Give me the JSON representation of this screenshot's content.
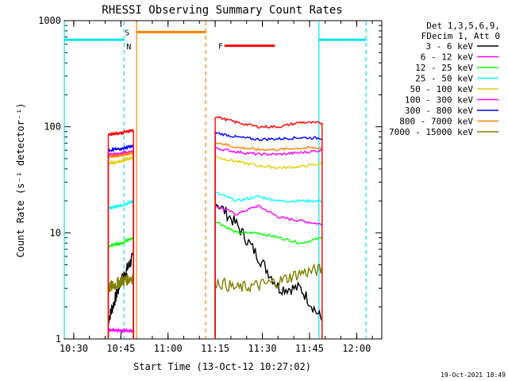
{
  "chart_data": {
    "type": "line",
    "title": "RHESSI Observing Summary Count Rates",
    "xlabel": "Start Time (13-Oct-12 10:27:02)",
    "ylabel": "Count Rate (s⁻¹ detector⁻¹)",
    "y_scale": "log",
    "ylim": [
      1,
      1000
    ],
    "xlim": [
      "10:27",
      "12:08"
    ],
    "x_ticks": [
      "10:30",
      "10:45",
      "11:00",
      "11:15",
      "11:30",
      "11:45",
      "12:00"
    ],
    "y_ticks": [
      "1",
      "10",
      "100",
      "1000"
    ],
    "legend_header": [
      "Det 1,3,5,6,9,",
      "FDecim 1, Att 0"
    ],
    "legend_position": "right",
    "footer_timestamp": "19-Oct-2021 18:49",
    "flags": [
      {
        "label": "N",
        "color": "#00e5ee",
        "ranges": [
          [
            "10:27",
            "10:46"
          ],
          [
            "11:48",
            "12:03"
          ]
        ]
      },
      {
        "label": "S",
        "color": "#ff8000",
        "ranges": [
          [
            "10:50",
            "11:12"
          ]
        ]
      },
      {
        "label": "F",
        "color": "#ff0000",
        "ranges": [
          [
            "11:18",
            "11:34"
          ]
        ]
      }
    ],
    "vertical_lines": [
      {
        "time": "10:27",
        "color": "#00e5ee",
        "style": "solid"
      },
      {
        "time": "10:46",
        "color": "#00e5ee",
        "style": "dashed"
      },
      {
        "time": "10:50",
        "color": "#ff8000",
        "style": "solid"
      },
      {
        "time": "11:12",
        "color": "#ff8000",
        "style": "dashed"
      },
      {
        "time": "11:48",
        "color": "#00e5ee",
        "style": "solid"
      },
      {
        "time": "12:03",
        "color": "#00e5ee",
        "style": "dashed"
      }
    ],
    "intervals": [
      [
        "10:41",
        "10:49"
      ],
      [
        "11:15",
        "11:49"
      ]
    ],
    "series": [
      {
        "name": "3 - 6 keV",
        "color": "#000000",
        "values": [
          [
            1.5,
            3.5,
            6.0
          ],
          [
            20,
            12,
            6,
            3,
            3,
            1.5
          ]
        ]
      },
      {
        "name": "6 - 12 keV",
        "color": "#ff00ff",
        "values": [
          [
            1.2,
            1.2,
            1.2
          ],
          [
            18,
            15,
            18,
            14,
            13,
            12
          ]
        ]
      },
      {
        "name": "12 - 25 keV",
        "color": "#00ff00",
        "values": [
          [
            7.5,
            8.0,
            9.0
          ],
          [
            13,
            10,
            10,
            9,
            8,
            9
          ]
        ]
      },
      {
        "name": "25 - 50 keV",
        "color": "#00ffff",
        "values": [
          [
            17,
            18,
            20
          ],
          [
            24,
            20,
            22,
            20,
            20,
            20
          ]
        ]
      },
      {
        "name": "50 - 100 keV",
        "color": "#e0d000",
        "values": [
          [
            45,
            47,
            52
          ],
          [
            52,
            47,
            43,
            41,
            42,
            45
          ]
        ]
      },
      {
        "name": "100 - 300 keV",
        "color": "#ff00ff",
        "values": [
          [
            54,
            56,
            58
          ],
          [
            63,
            58,
            55,
            55,
            57,
            60
          ]
        ]
      },
      {
        "name": "300 - 800 keV",
        "color": "#0000ff",
        "values": [
          [
            60,
            62,
            66
          ],
          [
            88,
            80,
            76,
            77,
            79,
            78
          ]
        ]
      },
      {
        "name": "800 - 7000 keV",
        "color": "#ff8000",
        "values": [
          [
            52,
            54,
            57
          ],
          [
            72,
            64,
            61,
            61,
            63,
            63
          ]
        ]
      },
      {
        "name": "7000 - 15000 keV",
        "color": "#808000",
        "values": [
          [
            3.0,
            3.5,
            3.8
          ],
          [
            3.5,
            3.0,
            3.2,
            3.5,
            4.2,
            4.5
          ]
        ]
      },
      {
        "name": "",
        "color": "#ff0000",
        "values": [
          [
            85,
            87,
            93
          ],
          [
            125,
            110,
            100,
            100,
            110,
            108
          ]
        ]
      }
    ]
  }
}
